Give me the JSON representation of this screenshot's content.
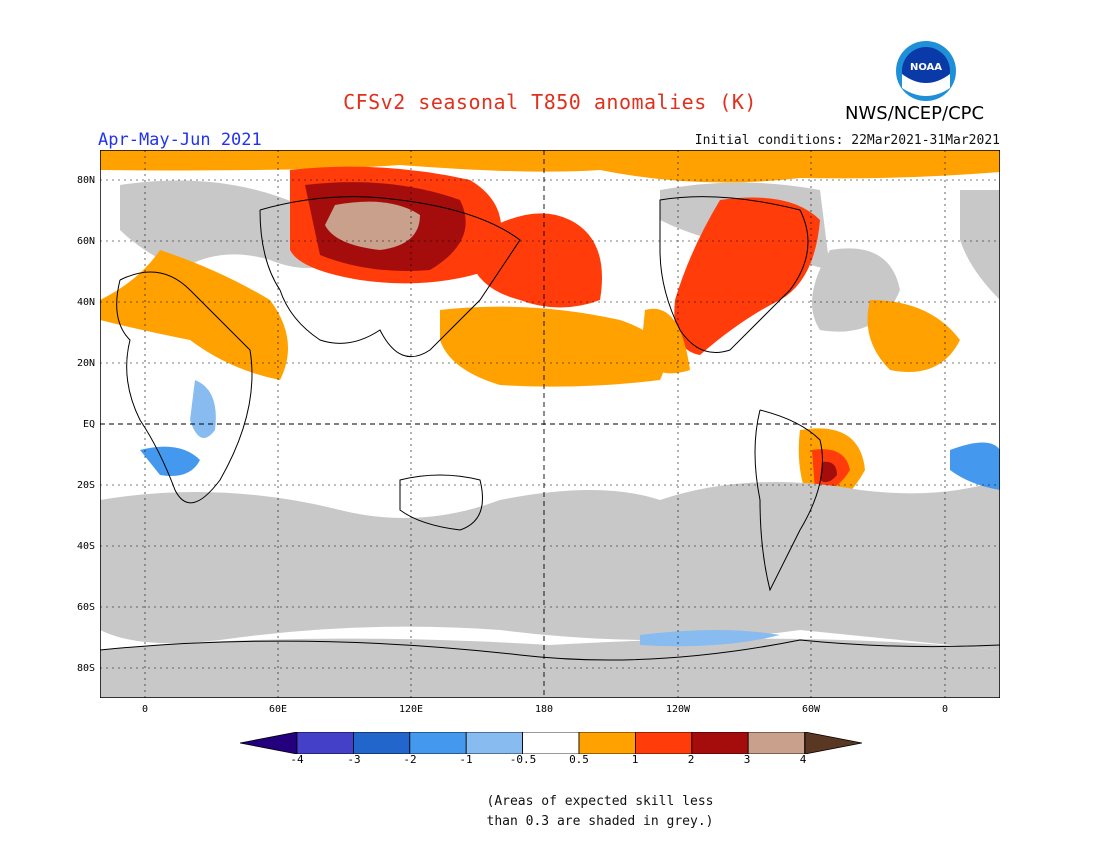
{
  "title": "CFSv2 seasonal T850 anomalies (K)",
  "period": "Apr-May-Jun 2021",
  "initial_conditions": "Initial conditions: 22Mar2021-31Mar2021",
  "agency": "NWS/NCEP/CPC",
  "logo_text": "NOAA",
  "lat_labels": [
    "80N",
    "60N",
    "40N",
    "20N",
    "EQ",
    "20S",
    "40S",
    "60S",
    "80S"
  ],
  "lon_labels": [
    "0",
    "60E",
    "120E",
    "180",
    "120W",
    "60W",
    "0"
  ],
  "colorbar": {
    "labels": [
      "-4",
      "-3",
      "-2",
      "-1",
      "-0.5",
      "0.5",
      "1",
      "2",
      "3",
      "4"
    ],
    "colors": [
      "#24007e",
      "#4440c8",
      "#2266cc",
      "#4499ee",
      "#88bbf0",
      "#ffffff",
      "#ffa100",
      "#ff3c0a",
      "#a50d0d",
      "#c8a08c",
      "#5a3722"
    ]
  },
  "note_line1": "(Areas of expected skill less",
  "note_line2": "than 0.3 are shaded in grey.)",
  "colors": {
    "grey_low_skill": "#c8c8c8",
    "anomaly_0_5_to_1": "#ffa100",
    "anomaly_1_to_2": "#ff3c0a",
    "anomaly_2_to_3": "#a50d0d",
    "anomaly_3_to_4": "#c8a08c",
    "anomaly_neg_0_5_to_1": "#88bbf0",
    "anomaly_neg_1_to_2": "#4499ee"
  }
}
